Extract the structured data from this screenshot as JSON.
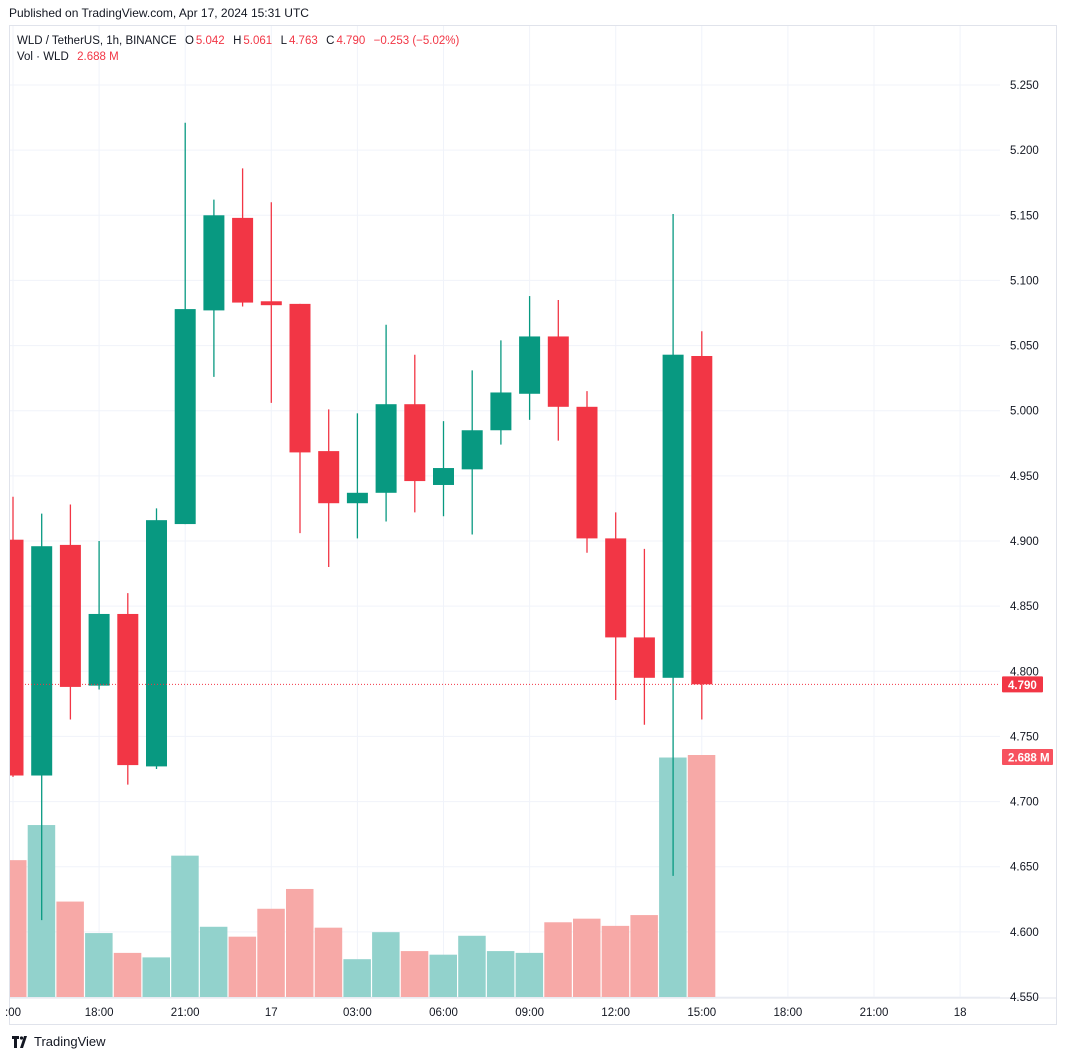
{
  "header": {
    "published": "Published on TradingView.com, Apr 17, 2024 15:31 UTC"
  },
  "legend": {
    "symbol": "WLD / TetherUS, 1h, BINANCE",
    "o_label": "O",
    "o": "5.042",
    "h_label": "H",
    "h": "5.061",
    "l_label": "L",
    "l": "4.763",
    "c_label": "C",
    "c": "4.790",
    "change": "−0.253 (−5.02%)",
    "vol_label": "Vol · WLD",
    "vol": "2.688 M"
  },
  "footer": {
    "brand": "TradingView"
  },
  "chart_data": {
    "type": "candlestick",
    "symbol": "WLD / TetherUS",
    "interval": "1h",
    "exchange": "BINANCE",
    "colors": {
      "up": "#089981",
      "down": "#f23645",
      "vol_up": "#92d2cc",
      "vol_down": "#f7a9a7",
      "grid": "#f0f3fa"
    },
    "y_ticks": [
      "5.250",
      "5.200",
      "5.150",
      "5.100",
      "5.050",
      "5.000",
      "4.950",
      "4.900",
      "4.850",
      "4.800",
      "4.750",
      "4.700",
      "4.650",
      "4.600",
      "4.550"
    ],
    "ylim": [
      4.55,
      5.25
    ],
    "x_ticks": [
      {
        "label": ":00",
        "hour": 0
      },
      {
        "label": "18:00",
        "hour": 3
      },
      {
        "label": "21:00",
        "hour": 6
      },
      {
        "label": "17",
        "hour": 9
      },
      {
        "label": "03:00",
        "hour": 12
      },
      {
        "label": "06:00",
        "hour": 15
      },
      {
        "label": "09:00",
        "hour": 18
      },
      {
        "label": "12:00",
        "hour": 21
      },
      {
        "label": "15:00",
        "hour": 24
      },
      {
        "label": "18:00",
        "hour": 27
      },
      {
        "label": "21:00",
        "hour": 30
      },
      {
        "label": "18",
        "hour": 33
      }
    ],
    "last_price_label": "4.790",
    "last_price": 4.79,
    "last_volume_label": "2.688 M",
    "volume_unit": "M",
    "candles": [
      {
        "t": "Apr 16 15:00",
        "o": 4.901,
        "h": 4.934,
        "l": 4.719,
        "c": 4.72,
        "v": 1.52
      },
      {
        "t": "Apr 16 16:00",
        "o": 4.72,
        "h": 4.921,
        "l": 4.609,
        "c": 4.896,
        "v": 1.91
      },
      {
        "t": "Apr 16 17:00",
        "o": 4.897,
        "h": 4.928,
        "l": 4.763,
        "c": 4.788,
        "v": 1.06
      },
      {
        "t": "Apr 16 18:00",
        "o": 4.789,
        "h": 4.9,
        "l": 4.786,
        "c": 4.844,
        "v": 0.71
      },
      {
        "t": "Apr 16 19:00",
        "o": 4.844,
        "h": 4.86,
        "l": 4.713,
        "c": 4.728,
        "v": 0.49
      },
      {
        "t": "Apr 16 20:00",
        "o": 4.727,
        "h": 4.925,
        "l": 4.725,
        "c": 4.916,
        "v": 0.44
      },
      {
        "t": "Apr 16 21:00",
        "o": 4.913,
        "h": 5.221,
        "l": 4.913,
        "c": 5.078,
        "v": 1.57
      },
      {
        "t": "Apr 16 22:00",
        "o": 5.077,
        "h": 5.162,
        "l": 5.026,
        "c": 5.15,
        "v": 0.78
      },
      {
        "t": "Apr 16 23:00",
        "o": 5.148,
        "h": 5.186,
        "l": 5.08,
        "c": 5.083,
        "v": 0.67
      },
      {
        "t": "Apr 17 00:00",
        "o": 5.084,
        "h": 5.16,
        "l": 5.006,
        "c": 5.081,
        "v": 0.98
      },
      {
        "t": "Apr 17 01:00",
        "o": 5.082,
        "h": 5.082,
        "l": 4.906,
        "c": 4.968,
        "v": 1.2
      },
      {
        "t": "Apr 17 02:00",
        "o": 4.969,
        "h": 5.001,
        "l": 4.88,
        "c": 4.929,
        "v": 0.77
      },
      {
        "t": "Apr 17 03:00",
        "o": 4.929,
        "h": 4.998,
        "l": 4.902,
        "c": 4.937,
        "v": 0.42
      },
      {
        "t": "Apr 17 04:00",
        "o": 4.937,
        "h": 5.066,
        "l": 4.915,
        "c": 5.005,
        "v": 0.72
      },
      {
        "t": "Apr 17 05:00",
        "o": 5.005,
        "h": 5.043,
        "l": 4.922,
        "c": 4.946,
        "v": 0.51
      },
      {
        "t": "Apr 17 06:00",
        "o": 4.943,
        "h": 4.992,
        "l": 4.919,
        "c": 4.956,
        "v": 0.47
      },
      {
        "t": "Apr 17 07:00",
        "o": 4.955,
        "h": 5.031,
        "l": 4.905,
        "c": 4.985,
        "v": 0.68
      },
      {
        "t": "Apr 17 08:00",
        "o": 4.985,
        "h": 5.054,
        "l": 4.974,
        "c": 5.014,
        "v": 0.51
      },
      {
        "t": "Apr 17 09:00",
        "o": 5.013,
        "h": 5.088,
        "l": 4.993,
        "c": 5.057,
        "v": 0.49
      },
      {
        "t": "Apr 17 10:00",
        "o": 5.057,
        "h": 5.085,
        "l": 4.977,
        "c": 5.003,
        "v": 0.83
      },
      {
        "t": "Apr 17 11:00",
        "o": 5.003,
        "h": 5.015,
        "l": 4.891,
        "c": 4.902,
        "v": 0.87
      },
      {
        "t": "Apr 17 12:00",
        "o": 4.902,
        "h": 4.922,
        "l": 4.778,
        "c": 4.826,
        "v": 0.79
      },
      {
        "t": "Apr 17 13:00",
        "o": 4.826,
        "h": 4.894,
        "l": 4.759,
        "c": 4.795,
        "v": 0.91
      },
      {
        "t": "Apr 17 14:00",
        "o": 4.795,
        "h": 5.151,
        "l": 4.643,
        "c": 5.043,
        "v": 2.66
      },
      {
        "t": "Apr 17 15:00",
        "o": 5.042,
        "h": 5.061,
        "l": 4.763,
        "c": 4.79,
        "v": 2.688
      }
    ]
  }
}
